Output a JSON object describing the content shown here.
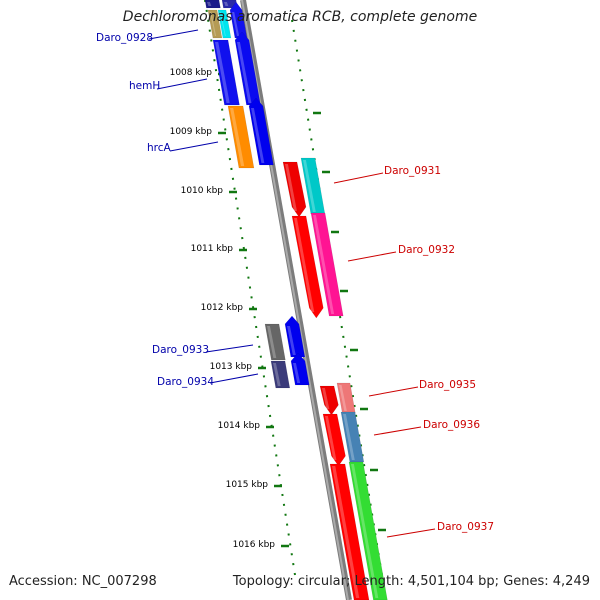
{
  "title": "Dechloromonas aromatica RCB, complete genome",
  "accession": "Accession: NC_007298",
  "topology": "Topology: circular",
  "length": "Length: 4,501,104 bp",
  "genes": "Genes: 4,249",
  "ticks": [
    {
      "label": "1008 kbp"
    },
    {
      "label": "1009 kbp"
    },
    {
      "label": "1010 kbp"
    },
    {
      "label": "1011 kbp"
    },
    {
      "label": "1012 kbp"
    },
    {
      "label": "1013 kbp"
    },
    {
      "label": "1014 kbp"
    },
    {
      "label": "1015 kbp"
    },
    {
      "label": "1016 kbp"
    }
  ],
  "gene_labels": [
    {
      "label": "Daro_0928",
      "strand": "reverse",
      "color": "#0000aa"
    },
    {
      "label": "hemH",
      "strand": "reverse",
      "color": "#0000aa"
    },
    {
      "label": "hrcA",
      "strand": "reverse",
      "color": "#0000aa"
    },
    {
      "label": "Daro_0931",
      "strand": "forward",
      "color": "#cc0000"
    },
    {
      "label": "Daro_0932",
      "strand": "forward",
      "color": "#cc0000"
    },
    {
      "label": "Daro_0933",
      "strand": "reverse",
      "color": "#0000aa"
    },
    {
      "label": "Daro_0934",
      "strand": "reverse",
      "color": "#0000aa"
    },
    {
      "label": "Daro_0935",
      "strand": "forward",
      "color": "#cc0000"
    },
    {
      "label": "Daro_0936",
      "strand": "forward",
      "color": "#cc0000"
    },
    {
      "label": "Daro_0937",
      "strand": "forward",
      "color": "#cc0000"
    }
  ],
  "colors": {
    "forward_cds": "#ff0000",
    "reverse_cds": "#0000ee",
    "backbone": "#888888",
    "ticks": "#117711"
  }
}
